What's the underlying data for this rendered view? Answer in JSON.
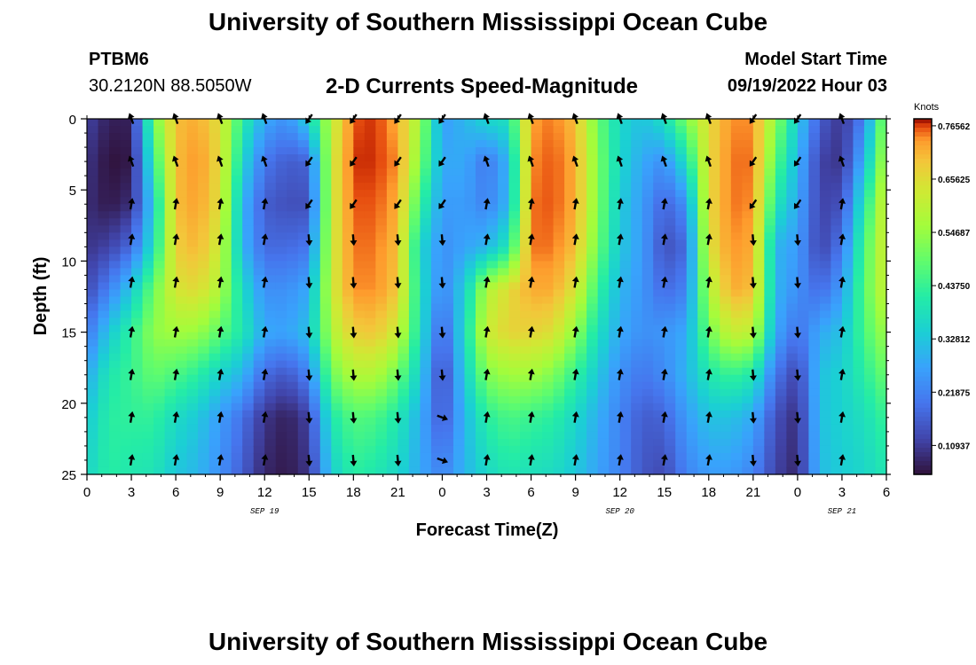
{
  "header": {
    "title": "University of Southern Mississippi Ocean Cube",
    "station": "PTBM6",
    "coordinates": "30.2120N  88.5050W",
    "product": "2-D Currents Speed-Magnitude",
    "model_start_label": "Model Start Time",
    "model_start_value": "09/19/2022 Hour 03"
  },
  "footer": {
    "title": "University of Southern Mississippi Ocean Cube"
  },
  "chart_data": {
    "type": "heatmap",
    "title": "2-D Currents Speed-Magnitude",
    "xlabel": "Forecast Time(Z)",
    "ylabel": "Depth (ft)",
    "x_range_hours": [
      0,
      54
    ],
    "y_range_ft": [
      0,
      25
    ],
    "x_ticks": [
      "0",
      "3",
      "6",
      "9",
      "12",
      "15",
      "18",
      "21",
      "0",
      "3",
      "6",
      "9",
      "12",
      "15",
      "18",
      "21",
      "0",
      "3",
      "6"
    ],
    "y_ticks": [
      "0",
      "5",
      "10",
      "15",
      "20",
      "25"
    ],
    "date_labels": [
      {
        "label": "SEP 19",
        "hour": 12
      },
      {
        "label": "SEP 20",
        "hour": 36
      },
      {
        "label": "SEP 21",
        "hour": 51
      }
    ],
    "colorbar": {
      "unit": "Knots",
      "min": 0.05,
      "max": 0.78,
      "ticks": [
        "0.76562",
        "0.65625",
        "0.54687",
        "0.43750",
        "0.32812",
        "0.21875",
        "0.10937"
      ],
      "tick_values": [
        0.76562,
        0.65625,
        0.54687,
        0.4375,
        0.32812,
        0.21875,
        0.10937
      ]
    },
    "arrow_times_hours": [
      3,
      6,
      9,
      12,
      15,
      18,
      21,
      24,
      27,
      30,
      33,
      36,
      39,
      42,
      45,
      48,
      51
    ],
    "arrow_depths_ft": [
      0,
      3,
      6,
      8.5,
      11.5,
      15,
      18,
      21,
      24
    ],
    "speed_columns": [
      {
        "hour": 0,
        "speed": [
          0.12,
          0.1,
          0.09,
          0.1,
          0.13,
          0.2,
          0.28,
          0.33,
          0.36
        ]
      },
      {
        "hour": 1.5,
        "speed": [
          0.07,
          0.05,
          0.06,
          0.12,
          0.22,
          0.33,
          0.4,
          0.42,
          0.42
        ]
      },
      {
        "hour": 3,
        "speed": [
          0.07,
          0.06,
          0.09,
          0.18,
          0.33,
          0.43,
          0.44,
          0.43,
          0.4
        ]
      },
      {
        "hour": 4.5,
        "speed": [
          0.5,
          0.42,
          0.34,
          0.38,
          0.5,
          0.54,
          0.49,
          0.43,
          0.39
        ]
      },
      {
        "hour": 6,
        "speed": [
          0.7,
          0.7,
          0.7,
          0.68,
          0.64,
          0.56,
          0.46,
          0.37,
          0.33
        ]
      },
      {
        "hour": 7.5,
        "speed": [
          0.72,
          0.74,
          0.73,
          0.71,
          0.66,
          0.55,
          0.42,
          0.33,
          0.3
        ]
      },
      {
        "hour": 9,
        "speed": [
          0.65,
          0.66,
          0.65,
          0.62,
          0.58,
          0.48,
          0.35,
          0.26,
          0.24
        ]
      },
      {
        "hour": 10.5,
        "speed": [
          0.42,
          0.36,
          0.3,
          0.3,
          0.37,
          0.4,
          0.3,
          0.19,
          0.16
        ]
      },
      {
        "hour": 12,
        "speed": [
          0.28,
          0.2,
          0.16,
          0.18,
          0.24,
          0.28,
          0.18,
          0.1,
          0.08
        ]
      },
      {
        "hour": 13.5,
        "speed": [
          0.24,
          0.16,
          0.14,
          0.18,
          0.24,
          0.27,
          0.15,
          0.07,
          0.06
        ]
      },
      {
        "hour": 15,
        "speed": [
          0.35,
          0.17,
          0.14,
          0.2,
          0.28,
          0.32,
          0.22,
          0.12,
          0.1
        ]
      },
      {
        "hour": 16.5,
        "speed": [
          0.6,
          0.62,
          0.62,
          0.62,
          0.62,
          0.58,
          0.5,
          0.4,
          0.34
        ]
      },
      {
        "hour": 18,
        "speed": [
          0.76,
          0.77,
          0.76,
          0.75,
          0.74,
          0.68,
          0.58,
          0.47,
          0.42
        ]
      },
      {
        "hour": 19.5,
        "speed": [
          0.77,
          0.77,
          0.76,
          0.75,
          0.74,
          0.69,
          0.58,
          0.46,
          0.4
        ]
      },
      {
        "hour": 21,
        "speed": [
          0.72,
          0.74,
          0.72,
          0.7,
          0.69,
          0.62,
          0.5,
          0.4,
          0.36
        ]
      },
      {
        "hour": 22.5,
        "speed": [
          0.56,
          0.52,
          0.44,
          0.36,
          0.38,
          0.38,
          0.34,
          0.29,
          0.28
        ]
      },
      {
        "hour": 24,
        "speed": [
          0.26,
          0.28,
          0.26,
          0.24,
          0.22,
          0.16,
          0.12,
          0.15,
          0.22
        ]
      },
      {
        "hour": 25.5,
        "speed": [
          0.3,
          0.28,
          0.26,
          0.27,
          0.34,
          0.37,
          0.34,
          0.3,
          0.3
        ]
      },
      {
        "hour": 27,
        "speed": [
          0.36,
          0.2,
          0.22,
          0.3,
          0.58,
          0.62,
          0.52,
          0.42,
          0.36
        ]
      },
      {
        "hour": 28.5,
        "speed": [
          0.38,
          0.3,
          0.3,
          0.4,
          0.66,
          0.67,
          0.56,
          0.46,
          0.4
        ]
      },
      {
        "hour": 30,
        "speed": [
          0.73,
          0.74,
          0.75,
          0.75,
          0.72,
          0.67,
          0.56,
          0.44,
          0.38
        ]
      },
      {
        "hour": 31.5,
        "speed": [
          0.75,
          0.76,
          0.76,
          0.75,
          0.72,
          0.65,
          0.52,
          0.42,
          0.37
        ]
      },
      {
        "hour": 33,
        "speed": [
          0.7,
          0.72,
          0.72,
          0.7,
          0.64,
          0.54,
          0.43,
          0.36,
          0.33
        ]
      },
      {
        "hour": 34.5,
        "speed": [
          0.5,
          0.52,
          0.52,
          0.5,
          0.44,
          0.38,
          0.33,
          0.29,
          0.27
        ]
      },
      {
        "hour": 36,
        "speed": [
          0.36,
          0.36,
          0.34,
          0.33,
          0.3,
          0.28,
          0.24,
          0.22,
          0.22
        ]
      },
      {
        "hour": 37.5,
        "speed": [
          0.32,
          0.28,
          0.26,
          0.26,
          0.25,
          0.24,
          0.2,
          0.16,
          0.15
        ]
      },
      {
        "hour": 39,
        "speed": [
          0.38,
          0.24,
          0.17,
          0.14,
          0.18,
          0.25,
          0.23,
          0.17,
          0.13
        ]
      },
      {
        "hour": 40.5,
        "speed": [
          0.52,
          0.38,
          0.24,
          0.18,
          0.22,
          0.28,
          0.3,
          0.26,
          0.22
        ]
      },
      {
        "hour": 42,
        "speed": [
          0.66,
          0.66,
          0.66,
          0.64,
          0.58,
          0.5,
          0.4,
          0.32,
          0.26
        ]
      },
      {
        "hour": 43.5,
        "speed": [
          0.74,
          0.75,
          0.75,
          0.74,
          0.72,
          0.62,
          0.44,
          0.32,
          0.26
        ]
      },
      {
        "hour": 45,
        "speed": [
          0.74,
          0.75,
          0.74,
          0.72,
          0.7,
          0.6,
          0.4,
          0.28,
          0.22
        ]
      },
      {
        "hour": 46.5,
        "speed": [
          0.54,
          0.48,
          0.4,
          0.3,
          0.3,
          0.28,
          0.2,
          0.14,
          0.12
        ]
      },
      {
        "hour": 48,
        "speed": [
          0.34,
          0.3,
          0.28,
          0.26,
          0.24,
          0.19,
          0.12,
          0.09,
          0.08
        ]
      },
      {
        "hour": 49.5,
        "speed": [
          0.16,
          0.12,
          0.12,
          0.12,
          0.18,
          0.28,
          0.32,
          0.32,
          0.31
        ]
      },
      {
        "hour": 51,
        "speed": [
          0.1,
          0.1,
          0.14,
          0.2,
          0.26,
          0.32,
          0.35,
          0.35,
          0.34
        ]
      },
      {
        "hour": 52.5,
        "speed": [
          0.22,
          0.3,
          0.4,
          0.46,
          0.48,
          0.46,
          0.42,
          0.38,
          0.36
        ]
      },
      {
        "hour": 54,
        "speed": [
          0.56,
          0.6,
          0.64,
          0.64,
          0.62,
          0.56,
          0.5,
          0.44,
          0.4
        ]
      }
    ]
  }
}
